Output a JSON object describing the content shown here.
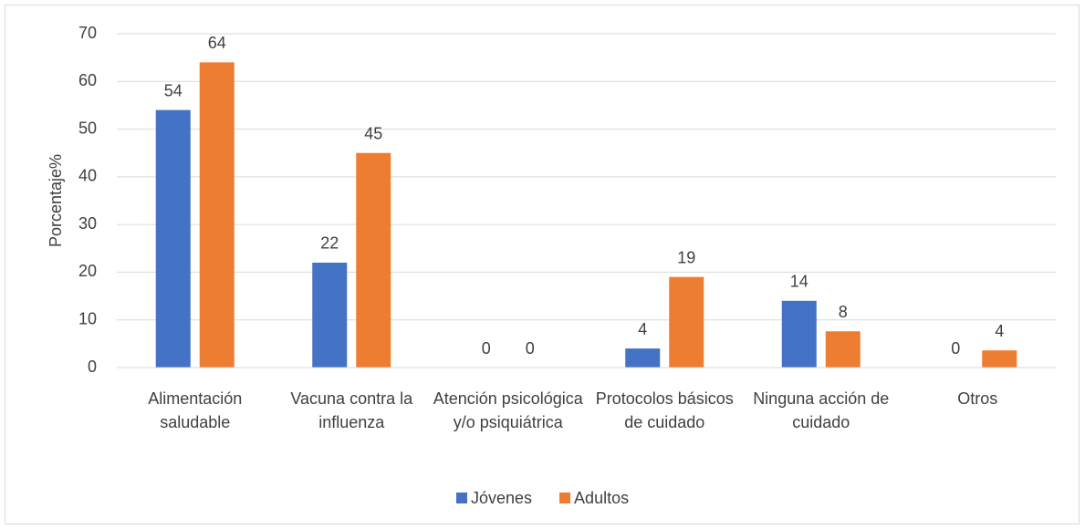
{
  "chart_data": {
    "type": "bar",
    "y_label": "Porcentaje%",
    "categories": [
      "Alimentación saludable",
      "Vacuna contra la influenza",
      "Atención psicológica y/o psiquiátrica",
      "Protocolos básicos de cuidado",
      "Ninguna acción de cuidado",
      "Otros"
    ],
    "series": [
      {
        "name": "Jóvenes",
        "color": "#4472c4",
        "values": [
          54,
          22,
          0,
          4,
          14,
          0
        ]
      },
      {
        "name": "Adultos",
        "color": "#ed7d31",
        "values": [
          64,
          45,
          0,
          19,
          7.6,
          3.6
        ],
        "value_labels": [
          "64",
          "45",
          "0",
          "19",
          "8",
          "4"
        ]
      }
    ],
    "ylim": [
      0,
      70
    ],
    "yticks": [
      0,
      10,
      20,
      30,
      40,
      50,
      60,
      70
    ],
    "grid": true,
    "legend": "bottom"
  }
}
